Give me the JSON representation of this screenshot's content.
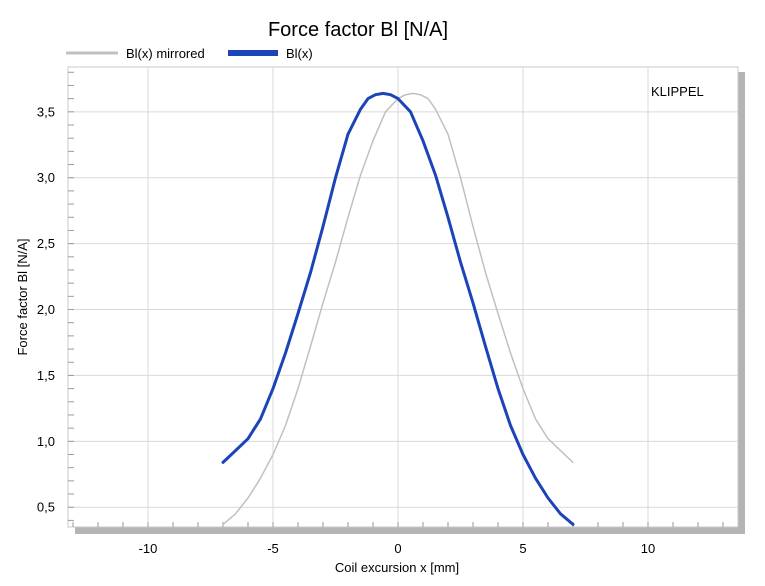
{
  "chart_data": {
    "type": "line",
    "title": "Force factor Bl [N/A]",
    "xlabel": "Coil excursion x [mm]",
    "ylabel": "Force factor Bl [N/A]",
    "xlim": [
      -13.2,
      13.6
    ],
    "ylim": [
      0.35,
      3.84
    ],
    "x_ticks": [
      -10,
      -5,
      0,
      5,
      10
    ],
    "x_tick_labels": [
      "-10",
      "-5",
      "0",
      "5",
      "10"
    ],
    "y_ticks": [
      0.5,
      1.0,
      1.5,
      2.0,
      2.5,
      3.0,
      3.5
    ],
    "y_tick_labels": [
      "0,5",
      "1,0",
      "1,5",
      "2,0",
      "2,5",
      "3,0",
      "3,5"
    ],
    "grid": true,
    "legend_position": "top-left",
    "annotation": "KLIPPEL",
    "series": [
      {
        "name": "Bl(x) mirrored",
        "color": "#c0c0c0",
        "x": [
          -7.0,
          -6.5,
          -6.0,
          -5.5,
          -5.0,
          -4.5,
          -4.0,
          -3.5,
          -3.0,
          -2.5,
          -2.0,
          -1.5,
          -1.0,
          -0.5,
          0.0,
          0.3,
          0.6,
          0.9,
          1.2,
          1.5,
          2.0,
          2.5,
          3.0,
          3.5,
          4.0,
          4.5,
          5.0,
          5.5,
          6.0,
          6.5,
          7.0
        ],
        "y": [
          0.37,
          0.45,
          0.57,
          0.72,
          0.9,
          1.12,
          1.4,
          1.72,
          2.05,
          2.36,
          2.7,
          3.02,
          3.28,
          3.5,
          3.6,
          3.63,
          3.64,
          3.63,
          3.6,
          3.52,
          3.33,
          3.0,
          2.63,
          2.28,
          1.97,
          1.67,
          1.4,
          1.17,
          1.02,
          0.93,
          0.84
        ]
      },
      {
        "name": "Bl(x)",
        "color": "#1c44b8",
        "x": [
          -7.0,
          -6.5,
          -6.0,
          -5.5,
          -5.0,
          -4.5,
          -4.0,
          -3.5,
          -3.0,
          -2.5,
          -2.0,
          -1.5,
          -1.2,
          -0.9,
          -0.6,
          -0.3,
          0.0,
          0.5,
          1.0,
          1.5,
          2.0,
          2.5,
          3.0,
          3.5,
          4.0,
          4.5,
          5.0,
          5.5,
          6.0,
          6.5,
          7.0
        ],
        "y": [
          0.84,
          0.93,
          1.02,
          1.17,
          1.4,
          1.67,
          1.97,
          2.28,
          2.63,
          3.0,
          3.33,
          3.52,
          3.6,
          3.63,
          3.64,
          3.63,
          3.6,
          3.5,
          3.28,
          3.02,
          2.7,
          2.36,
          2.05,
          1.72,
          1.4,
          1.12,
          0.9,
          0.72,
          0.57,
          0.45,
          0.37
        ]
      }
    ]
  }
}
